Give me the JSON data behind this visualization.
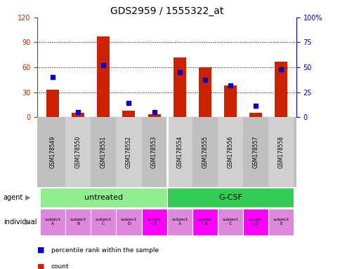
{
  "title": "GDS2959 / 1555322_at",
  "samples": [
    "GSM178549",
    "GSM178550",
    "GSM178551",
    "GSM178552",
    "GSM178553",
    "GSM178554",
    "GSM178555",
    "GSM178556",
    "GSM178557",
    "GSM178558"
  ],
  "counts": [
    33,
    5,
    97,
    8,
    3,
    72,
    60,
    38,
    5,
    67
  ],
  "percentile_ranks": [
    40,
    5,
    52,
    14,
    5,
    45,
    37,
    32,
    11,
    48
  ],
  "ylim_left": [
    0,
    120
  ],
  "ylim_right": [
    0,
    100
  ],
  "yticks_left": [
    0,
    30,
    60,
    90,
    120
  ],
  "yticks_right": [
    0,
    25,
    50,
    75,
    100
  ],
  "ytick_labels_left": [
    "0",
    "30",
    "60",
    "90",
    "120"
  ],
  "ytick_labels_right": [
    "0",
    "25",
    "50",
    "75",
    "100%"
  ],
  "agent_groups": [
    {
      "label": "untreated",
      "start": 0,
      "end": 5,
      "color": "#90EE90"
    },
    {
      "label": "G-CSF",
      "start": 5,
      "end": 10,
      "color": "#33CC55"
    }
  ],
  "individuals": [
    {
      "label": "subject\nA",
      "idx": 0,
      "color": "#DD88DD"
    },
    {
      "label": "subject\nB",
      "idx": 1,
      "color": "#DD88DD"
    },
    {
      "label": "subject\nC",
      "idx": 2,
      "color": "#DD88DD"
    },
    {
      "label": "subject\nD",
      "idx": 3,
      "color": "#DD88DD"
    },
    {
      "label": "subjec\nt E",
      "idx": 4,
      "color": "#FF00FF"
    },
    {
      "label": "subject\nA",
      "idx": 5,
      "color": "#DD88DD"
    },
    {
      "label": "subjec\nt B",
      "idx": 6,
      "color": "#FF00FF"
    },
    {
      "label": "subject\nC",
      "idx": 7,
      "color": "#DD88DD"
    },
    {
      "label": "subjec\nt D",
      "idx": 8,
      "color": "#FF00FF"
    },
    {
      "label": "subject\nE",
      "idx": 9,
      "color": "#DD88DD"
    }
  ],
  "bar_color": "#CC2200",
  "dot_color": "#0000CC",
  "bar_width": 0.5,
  "bg_color": "#FFFFFF",
  "left_axis_color": "#CC2200",
  "right_axis_color": "#0000CC",
  "col_colors": [
    "#C0C0C0",
    "#D0D0D0"
  ]
}
